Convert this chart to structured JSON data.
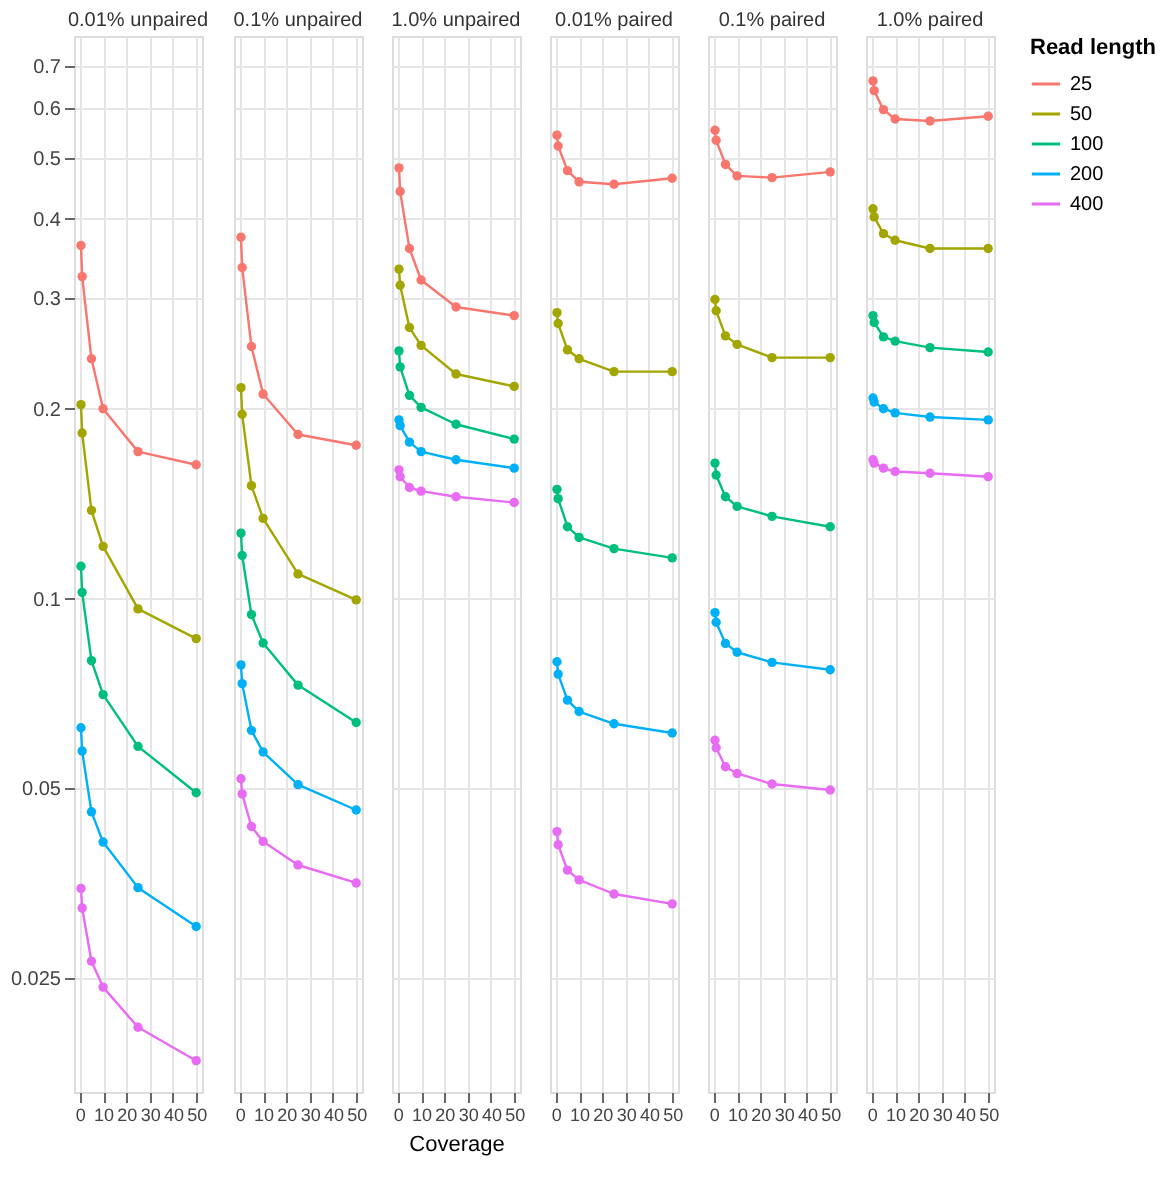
{
  "chart_data": [
    {
      "type": "line",
      "title": "0.01% unpaired",
      "x": [
        0.5,
        1,
        5,
        10,
        25,
        50
      ],
      "xlim": [
        -2.5,
        52.5
      ],
      "xticks": [
        0,
        10,
        20,
        30,
        40,
        50
      ],
      "ylim": [
        0.0165,
        0.78
      ],
      "yticks": [
        0.025,
        0.05,
        0.1,
        0.2,
        0.3,
        0.4,
        0.5,
        0.6,
        0.7
      ],
      "log": "y",
      "grid": true,
      "marker": "circle",
      "line_style": "solid",
      "legend": false,
      "series": [
        {
          "color": "#f8766d",
          "values": [
            0.363,
            0.324,
            0.24,
            0.2,
            0.171,
            0.163
          ]
        },
        {
          "color": "#a3a500",
          "values": [
            0.203,
            0.183,
            0.138,
            0.121,
            0.0963,
            0.0864
          ]
        },
        {
          "color": "#00bf7d",
          "values": [
            0.1125,
            0.1023,
            0.0797,
            0.0704,
            0.0583,
            0.0492
          ]
        },
        {
          "color": "#00b0f6",
          "values": [
            0.0624,
            0.0573,
            0.0459,
            0.0411,
            0.0348,
            0.0302
          ]
        },
        {
          "color": "#e76bf3",
          "values": [
            0.0347,
            0.0323,
            0.0266,
            0.0242,
            0.0209,
            0.0185
          ]
        }
      ]
    },
    {
      "type": "line",
      "title": "0.1% unpaired",
      "x": [
        0.5,
        1,
        5,
        10,
        25,
        50
      ],
      "xlim": [
        -2.5,
        52.5
      ],
      "xticks": [
        0,
        10,
        20,
        30,
        40,
        50
      ],
      "ylim": [
        0.0165,
        0.78
      ],
      "yticks": [
        0.025,
        0.05,
        0.1,
        0.2,
        0.3,
        0.4,
        0.5,
        0.6,
        0.7
      ],
      "log": "y",
      "grid": true,
      "marker": "circle",
      "line_style": "solid",
      "legend": false,
      "tick_labels": "x",
      "series": [
        {
          "color": "#f8766d",
          "values": [
            0.374,
            0.335,
            0.251,
            0.211,
            0.182,
            0.175
          ]
        },
        {
          "color": "#a3a500",
          "values": [
            0.216,
            0.196,
            0.151,
            0.134,
            0.1094,
            0.0995
          ]
        },
        {
          "color": "#00bf7d",
          "values": [
            0.127,
            0.117,
            0.0943,
            0.085,
            0.0729,
            0.0636
          ]
        },
        {
          "color": "#00b0f6",
          "values": [
            0.0785,
            0.0733,
            0.0618,
            0.0571,
            0.0507,
            0.0462
          ]
        },
        {
          "color": "#e76bf3",
          "values": [
            0.0518,
            0.049,
            0.0435,
            0.0412,
            0.0378,
            0.0354
          ]
        }
      ]
    },
    {
      "type": "line",
      "title": "1.0% unpaired",
      "xlabel": "Coverage",
      "x": [
        0.5,
        1,
        5,
        10,
        25,
        50
      ],
      "xlim": [
        -2.5,
        52.5
      ],
      "xticks": [
        0,
        10,
        20,
        30,
        40,
        50
      ],
      "ylim": [
        0.0165,
        0.78
      ],
      "yticks": [
        0.025,
        0.05,
        0.1,
        0.2,
        0.3,
        0.4,
        0.5,
        0.6,
        0.7
      ],
      "log": "y",
      "grid": true,
      "marker": "circle",
      "line_style": "solid",
      "legend": false,
      "tick_labels": "x",
      "series": [
        {
          "color": "#f8766d",
          "values": [
            0.482,
            0.442,
            0.359,
            0.32,
            0.29,
            0.281
          ]
        },
        {
          "color": "#a3a500",
          "values": [
            0.333,
            0.314,
            0.269,
            0.252,
            0.227,
            0.217
          ]
        },
        {
          "color": "#00bf7d",
          "values": [
            0.247,
            0.233,
            0.21,
            0.201,
            0.189,
            0.179
          ]
        },
        {
          "color": "#00b0f6",
          "values": [
            0.192,
            0.188,
            0.177,
            0.171,
            0.166,
            0.161
          ]
        },
        {
          "color": "#e76bf3",
          "values": [
            0.16,
            0.156,
            0.15,
            0.148,
            0.145,
            0.142
          ]
        }
      ]
    },
    {
      "type": "line",
      "title": "0.01% paired",
      "x": [
        0.5,
        1,
        5,
        10,
        25,
        50
      ],
      "xlim": [
        -2.5,
        52.5
      ],
      "xticks": [
        0,
        10,
        20,
        30,
        40,
        50
      ],
      "ylim": [
        0.0165,
        0.78
      ],
      "yticks": [
        0.025,
        0.05,
        0.1,
        0.2,
        0.3,
        0.4,
        0.5,
        0.6,
        0.7
      ],
      "log": "y",
      "grid": true,
      "marker": "circle",
      "line_style": "solid",
      "legend": false,
      "tick_labels": "x",
      "series": [
        {
          "color": "#f8766d",
          "values": [
            0.543,
            0.522,
            0.477,
            0.458,
            0.454,
            0.464
          ]
        },
        {
          "color": "#a3a500",
          "values": [
            0.284,
            0.273,
            0.248,
            0.24,
            0.229,
            0.229
          ]
        },
        {
          "color": "#00bf7d",
          "values": [
            0.149,
            0.144,
            0.13,
            0.125,
            0.12,
            0.116
          ]
        },
        {
          "color": "#00b0f6",
          "values": [
            0.0794,
            0.0759,
            0.069,
            0.0662,
            0.0633,
            0.0612
          ]
        },
        {
          "color": "#e76bf3",
          "values": [
            0.0427,
            0.0407,
            0.0371,
            0.0358,
            0.034,
            0.0328
          ]
        }
      ]
    },
    {
      "type": "line",
      "title": "0.1% paired",
      "x": [
        0.5,
        1,
        5,
        10,
        25,
        50
      ],
      "xlim": [
        -2.5,
        52.5
      ],
      "xticks": [
        0,
        10,
        20,
        30,
        40,
        50
      ],
      "ylim": [
        0.0165,
        0.78
      ],
      "yticks": [
        0.025,
        0.05,
        0.1,
        0.2,
        0.3,
        0.4,
        0.5,
        0.6,
        0.7
      ],
      "log": "y",
      "grid": true,
      "marker": "circle",
      "line_style": "solid",
      "legend": false,
      "tick_labels": "x",
      "series": [
        {
          "color": "#f8766d",
          "values": [
            0.553,
            0.533,
            0.488,
            0.468,
            0.465,
            0.475
          ]
        },
        {
          "color": "#a3a500",
          "values": [
            0.298,
            0.286,
            0.261,
            0.253,
            0.241,
            0.241
          ]
        },
        {
          "color": "#00bf7d",
          "values": [
            0.164,
            0.157,
            0.145,
            0.14,
            0.135,
            0.13
          ]
        },
        {
          "color": "#00b0f6",
          "values": [
            0.095,
            0.0917,
            0.0849,
            0.0822,
            0.0792,
            0.0771
          ]
        },
        {
          "color": "#e76bf3",
          "values": [
            0.0596,
            0.058,
            0.0541,
            0.0528,
            0.0508,
            0.0497
          ]
        }
      ]
    },
    {
      "type": "line",
      "title": "1.0% paired",
      "legend_title": "Read length",
      "x": [
        0.5,
        1,
        5,
        10,
        25,
        50
      ],
      "xlim": [
        -2.5,
        52.5
      ],
      "xticks": [
        0,
        10,
        20,
        30,
        40,
        50
      ],
      "ylim": [
        0.0165,
        0.78
      ],
      "yticks": [
        0.025,
        0.05,
        0.1,
        0.2,
        0.3,
        0.4,
        0.5,
        0.6,
        0.7
      ],
      "log": "y",
      "grid": true,
      "marker": "circle",
      "line_style": "solid",
      "legend": "right",
      "tick_labels": "x",
      "series": [
        {
          "name": "25",
          "color": "#f8766d",
          "values": [
            0.662,
            0.639,
            0.596,
            0.576,
            0.572,
            0.582
          ]
        },
        {
          "name": "50",
          "color": "#a3a500",
          "values": [
            0.415,
            0.403,
            0.379,
            0.37,
            0.359,
            0.359
          ]
        },
        {
          "name": "100",
          "color": "#00bf7d",
          "values": [
            0.281,
            0.274,
            0.26,
            0.256,
            0.25,
            0.246
          ]
        },
        {
          "name": "200",
          "color": "#00b0f6",
          "values": [
            0.208,
            0.205,
            0.2,
            0.197,
            0.194,
            0.192
          ]
        },
        {
          "name": "400",
          "color": "#e76bf3",
          "values": [
            0.166,
            0.164,
            0.161,
            0.159,
            0.158,
            0.156
          ]
        }
      ]
    }
  ]
}
